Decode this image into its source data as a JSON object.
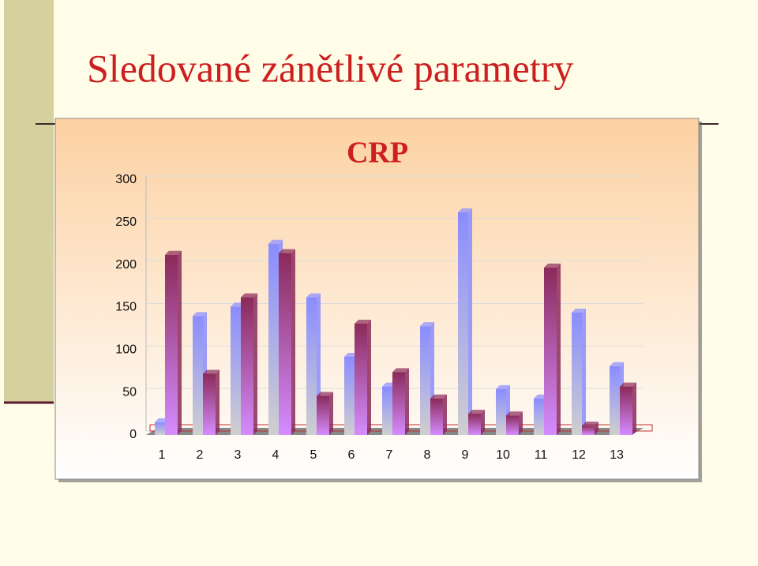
{
  "slide_title": "Sledované zánětlivé parametry",
  "chart_data": {
    "type": "bar3d",
    "title": "CRP",
    "categories": [
      "1",
      "2",
      "3",
      "4",
      "5",
      "6",
      "7",
      "8",
      "9",
      "10",
      "11",
      "12",
      "13"
    ],
    "series": [
      {
        "color": "#8a8cff",
        "values": [
          15,
          140,
          151,
          225,
          162,
          92,
          57,
          128,
          262,
          54,
          43,
          144,
          81
        ]
      },
      {
        "color": "#8b2a5a",
        "values": [
          212,
          72,
          162,
          214,
          46,
          131,
          74,
          43,
          25,
          23,
          197,
          11,
          57
        ]
      }
    ],
    "ylim": [
      0,
      300
    ],
    "yticks": [
      0,
      50,
      100,
      150,
      200,
      250,
      300
    ],
    "grid": true
  }
}
